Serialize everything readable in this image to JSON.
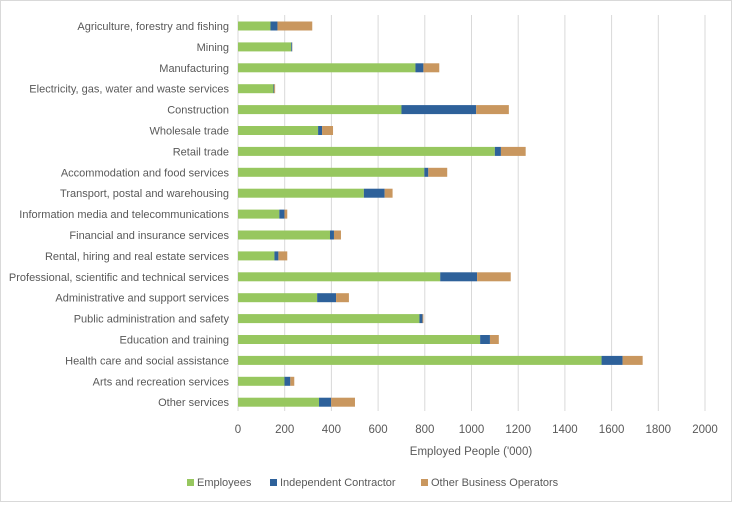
{
  "chart_data": {
    "type": "bar",
    "orientation": "horizontal",
    "stacked": true,
    "title": "",
    "xlabel": "Employed People ('000)",
    "ylabel": "",
    "xlim": [
      0,
      2000
    ],
    "xticks": [
      0,
      200,
      400,
      600,
      800,
      1000,
      1200,
      1400,
      1600,
      1800,
      2000
    ],
    "grid": true,
    "legend_position": "bottom",
    "categories": [
      "Agriculture, forestry and fishing",
      "Mining",
      "Manufacturing",
      "Electricity, gas, water and waste services",
      "Construction",
      "Wholesale trade",
      "Retail trade",
      "Accommodation and food services",
      "Transport, postal and warehousing",
      "Information media and telecommunications",
      "Financial and insurance services",
      "Rental, hiring and real estate services",
      "Professional, scientific and technical services",
      "Administrative and support services",
      "Public administration and safety",
      "Education and training",
      "Health care and social assistance",
      "Arts and recreation services",
      "Other services"
    ],
    "series": [
      {
        "name": "Employees",
        "color": "#97c75f",
        "values": [
          139,
          228,
          760,
          152,
          700,
          343,
          1100,
          798,
          539,
          177,
          394,
          156,
          866,
          339,
          777,
          1037,
          1557,
          199,
          347
        ]
      },
      {
        "name": "Independent Contractor",
        "color": "#2e619a",
        "values": [
          30,
          4,
          34,
          3,
          320,
          17,
          26,
          17,
          89,
          22,
          17,
          17,
          158,
          81,
          13,
          42,
          90,
          25,
          52
        ]
      },
      {
        "name": "Other Business Operators",
        "color": "#c9975f",
        "values": [
          149,
          1,
          68,
          4,
          140,
          47,
          106,
          81,
          34,
          12,
          30,
          38,
          144,
          55,
          4,
          38,
          86,
          17,
          102
        ]
      }
    ]
  }
}
